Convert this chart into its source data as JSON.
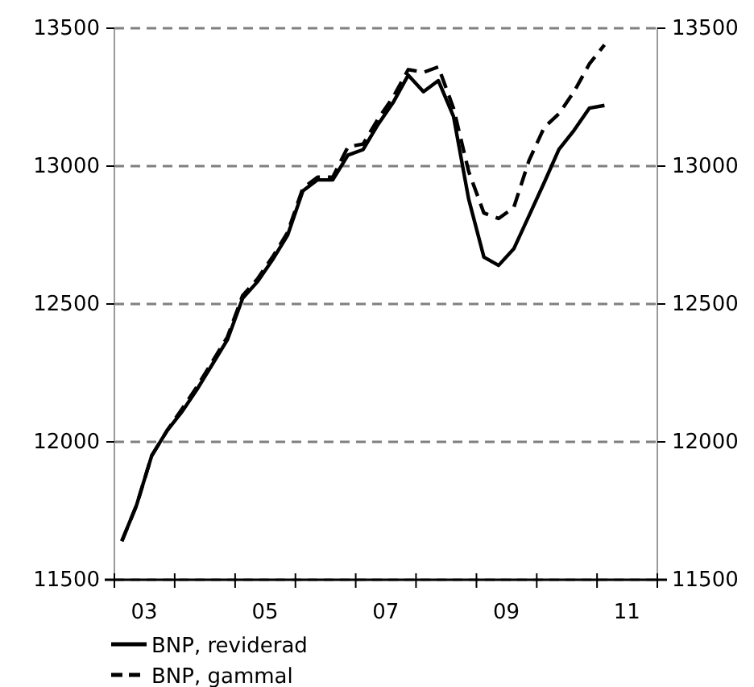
{
  "chart_data": {
    "type": "line",
    "x": [
      "2003-02-15",
      "2003-05-15",
      "2003-08-15",
      "2003-11-15",
      "2004-02-15",
      "2004-05-15",
      "2004-08-15",
      "2004-11-15",
      "2005-02-15",
      "2005-05-15",
      "2005-08-15",
      "2005-11-15",
      "2006-02-15",
      "2006-05-15",
      "2006-08-15",
      "2006-11-15",
      "2007-02-15",
      "2007-05-15",
      "2007-08-15",
      "2007-11-15",
      "2008-02-15",
      "2008-05-15",
      "2008-08-15",
      "2008-11-15",
      "2009-02-15",
      "2009-05-15",
      "2009-08-15",
      "2009-11-15",
      "2010-02-15",
      "2010-05-15",
      "2010-08-15",
      "2010-11-15",
      "2011-02-15"
    ],
    "series": [
      {
        "name": "BNP, reviderad",
        "color": "#000000",
        "line_style": "solid",
        "values": [
          11640,
          11770,
          11950,
          12040,
          12110,
          12190,
          12280,
          12370,
          12520,
          12580,
          12660,
          12750,
          12910,
          12950,
          12950,
          13040,
          13060,
          13150,
          13230,
          13330,
          13270,
          13310,
          13180,
          12880,
          12670,
          12640,
          12700,
          12820,
          12940,
          13060,
          13130,
          13210,
          13220
        ]
      },
      {
        "name": "BNP, gammal",
        "color": "#000000",
        "line_style": "dashed",
        "values": [
          11640,
          11770,
          11950,
          12040,
          12120,
          12200,
          12290,
          12380,
          12530,
          12590,
          12670,
          12760,
          12920,
          12960,
          12960,
          13070,
          13080,
          13170,
          13250,
          13350,
          13340,
          13360,
          13210,
          12980,
          12830,
          12810,
          12850,
          13020,
          13140,
          13190,
          13270,
          13370,
          13440
        ]
      }
    ],
    "xlim": [
      "2003-01-01",
      "2012-01-01"
    ],
    "xticks": [
      {
        "value": "2003-01-01",
        "label": null
      },
      {
        "value": "2003-07-01",
        "label": "03"
      },
      {
        "value": "2004-01-01",
        "label": null
      },
      {
        "value": "2005-01-01",
        "label": null
      },
      {
        "value": "2005-07-01",
        "label": "05"
      },
      {
        "value": "2006-01-01",
        "label": null
      },
      {
        "value": "2007-01-01",
        "label": null
      },
      {
        "value": "2007-07-01",
        "label": "07"
      },
      {
        "value": "2008-01-01",
        "label": null
      },
      {
        "value": "2009-01-01",
        "label": null
      },
      {
        "value": "2009-07-01",
        "label": "09"
      },
      {
        "value": "2010-01-01",
        "label": null
      },
      {
        "value": "2011-01-01",
        "label": null
      },
      {
        "value": "2011-07-01",
        "label": "11"
      },
      {
        "value": "2012-01-01",
        "label": null
      }
    ],
    "ylim": [
      11500,
      13500
    ],
    "yticks": [
      11500,
      12000,
      12500,
      13000,
      13500
    ],
    "y2lim": [
      11500,
      13500
    ],
    "y2ticks": [
      11500,
      12000,
      12500,
      13000,
      13500
    ],
    "grid": "y",
    "legend": "bottom",
    "marker": "none"
  }
}
